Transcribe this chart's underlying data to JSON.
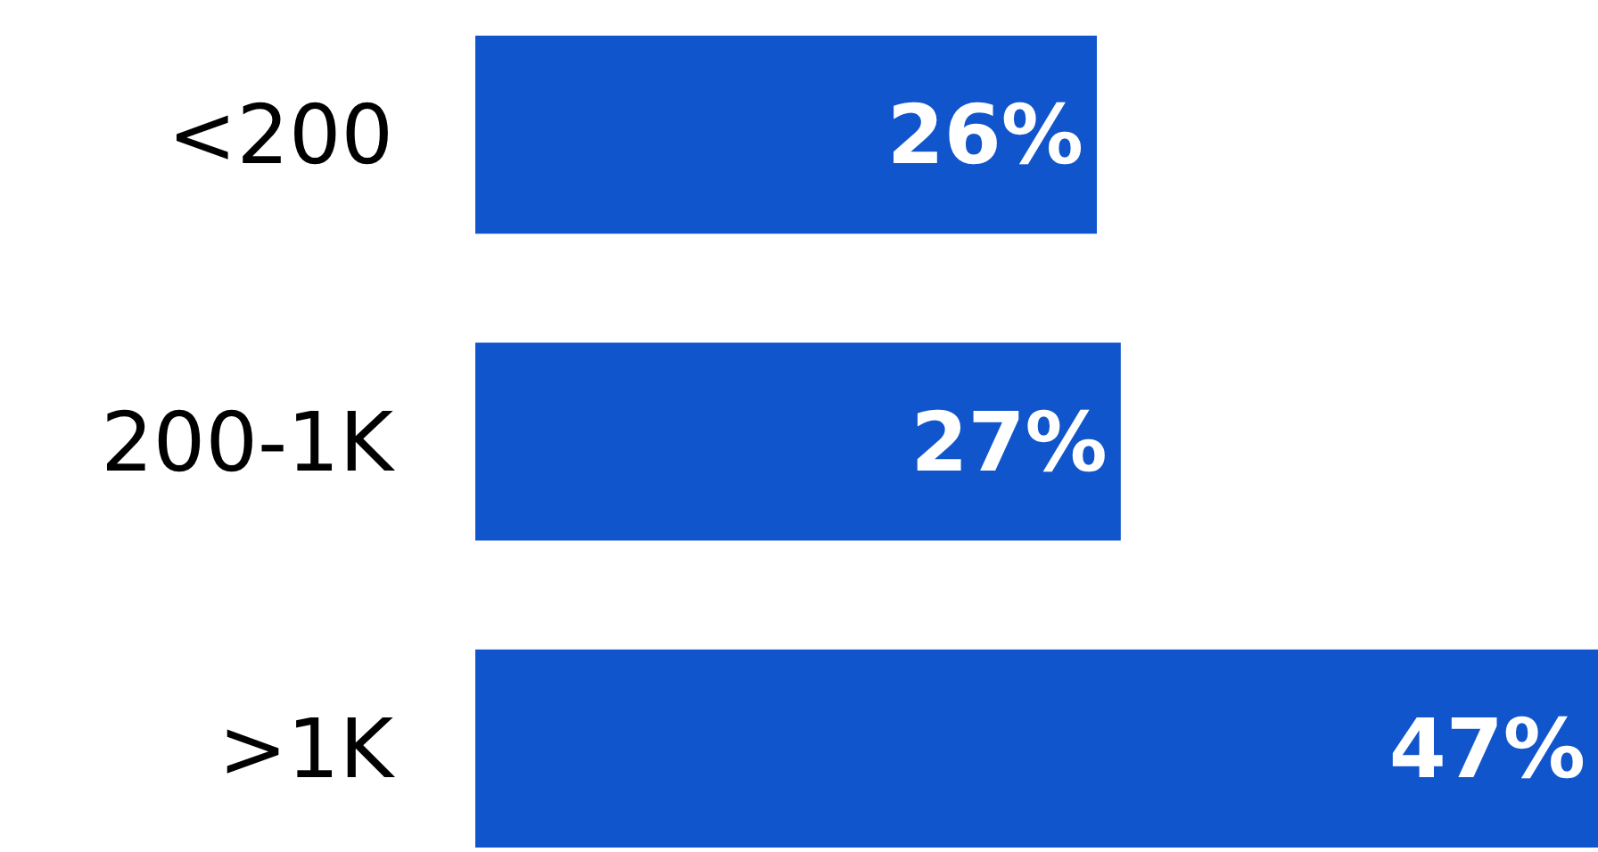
{
  "chart_data": {
    "type": "bar",
    "orientation": "horizontal",
    "categories": [
      "<200",
      "200-1K",
      ">1K"
    ],
    "values": [
      26,
      27,
      47
    ],
    "value_labels": [
      "26%",
      "27%",
      "47%"
    ],
    "color": "#1155cc",
    "grid": false,
    "tick_labels": "y"
  }
}
